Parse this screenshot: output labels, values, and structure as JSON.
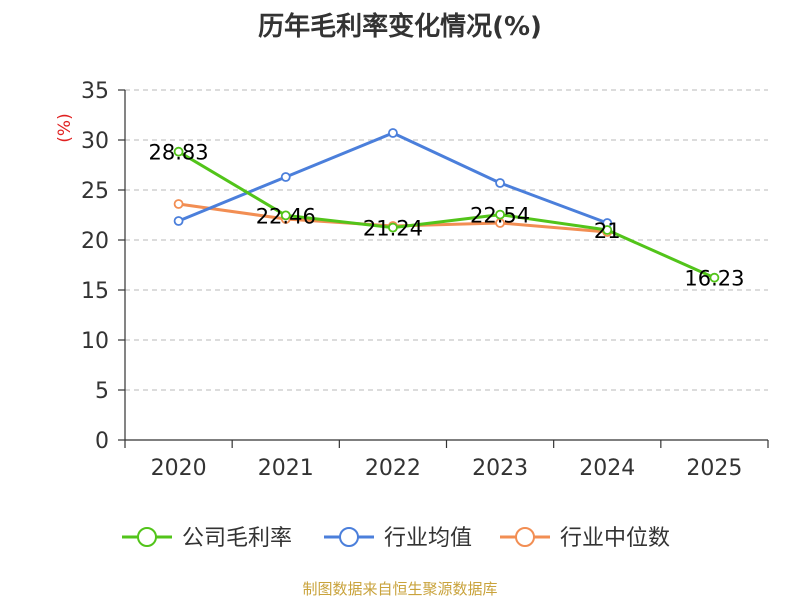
{
  "chart_data": {
    "type": "line",
    "title": "历年毛利率变化情况(%)",
    "ylabel": "(%)",
    "xlabel": "",
    "categories": [
      "2020",
      "2021",
      "2022",
      "2023",
      "2024",
      "2025"
    ],
    "ylim": [
      0,
      35
    ],
    "yticks": [
      0,
      5,
      10,
      15,
      20,
      25,
      30,
      35
    ],
    "grid": true,
    "legend_position": "bottom",
    "series": [
      {
        "name": "公司毛利率",
        "color": "#52c41a",
        "values": [
          28.83,
          22.46,
          21.24,
          22.54,
          21,
          16.23
        ],
        "labels": [
          "28.83",
          "22.46",
          "21.24",
          "22.54",
          "21",
          "16.23"
        ]
      },
      {
        "name": "行业均值",
        "color": "#4b7fdb",
        "values": [
          21.9,
          26.3,
          30.7,
          25.7,
          21.7,
          null
        ],
        "labels": []
      },
      {
        "name": "行业中位数",
        "color": "#f28e53",
        "values": [
          23.6,
          22.1,
          21.4,
          21.7,
          20.8,
          null
        ],
        "labels": []
      }
    ]
  },
  "footer": "制图数据来自恒生聚源数据库"
}
